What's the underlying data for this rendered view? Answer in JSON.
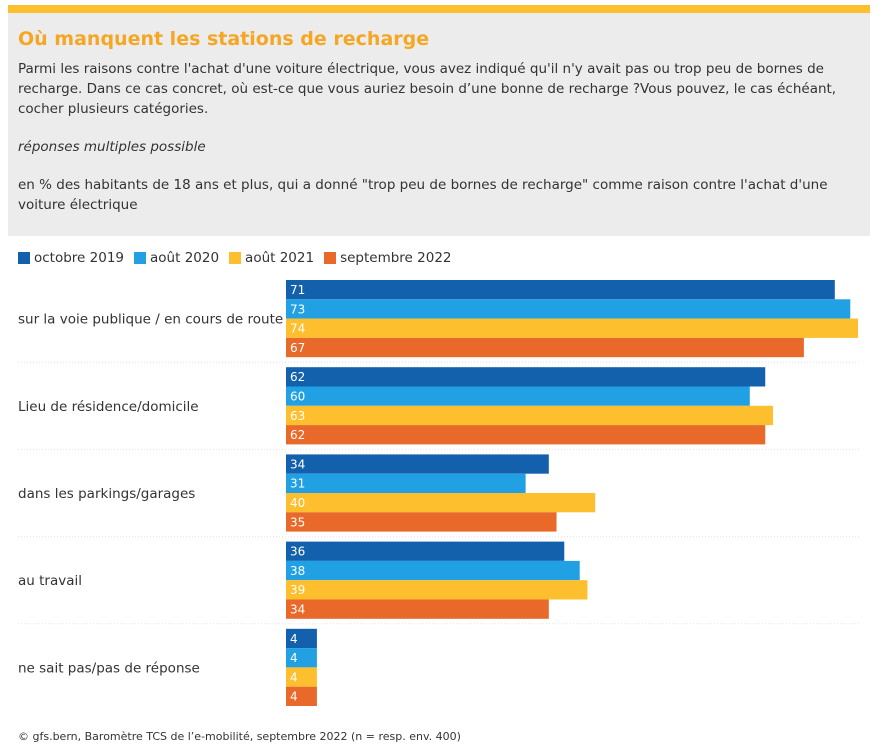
{
  "header": {
    "title": "Où manquent les stations de recharge",
    "description": "Parmi les raisons contre l'achat d'une voiture électrique, vous avez indiqué qu'il n'y avait pas ou trop peu de bornes de recharge. Dans ce cas concret, où est-ce que vous auriez besoin d’une bonne de recharge ?Vous pouvez, le cas échéant, cocher plusieurs catégories.",
    "note": "réponses multiples possible",
    "basis": "en % des habitants de 18 ans et plus, qui a donné \"trop peu de bornes de recharge\" comme raison contre l'achat d'une voiture électrique"
  },
  "colors": {
    "accent": "#fdbf2d",
    "title": "#f5a623",
    "header_bg": "#ececec"
  },
  "chart_data": {
    "type": "bar",
    "orientation": "horizontal",
    "categories": [
      "sur la voie publique / en cours de route",
      "Lieu de résidence/domicile",
      "dans les parkings/garages",
      "au travail",
      "ne sait pas/pas de réponse"
    ],
    "series": [
      {
        "name": "octobre 2019",
        "color": "#1361ad",
        "values": [
          71,
          62,
          34,
          36,
          4
        ]
      },
      {
        "name": "août 2020",
        "color": "#22a0e4",
        "values": [
          73,
          60,
          31,
          38,
          4
        ]
      },
      {
        "name": "août 2021",
        "color": "#fdbf2d",
        "values": [
          74,
          63,
          40,
          39,
          4
        ]
      },
      {
        "name": "septembre 2022",
        "color": "#e8692a",
        "values": [
          67,
          62,
          35,
          34,
          4
        ]
      }
    ],
    "xlim": [
      0,
      74
    ],
    "legend_position": "top-left",
    "grid": false
  },
  "footer": {
    "source": "© gfs.bern, Baromètre TCS de l’e-mobilité, septembre 2022 (n = resp. env. 400)"
  }
}
